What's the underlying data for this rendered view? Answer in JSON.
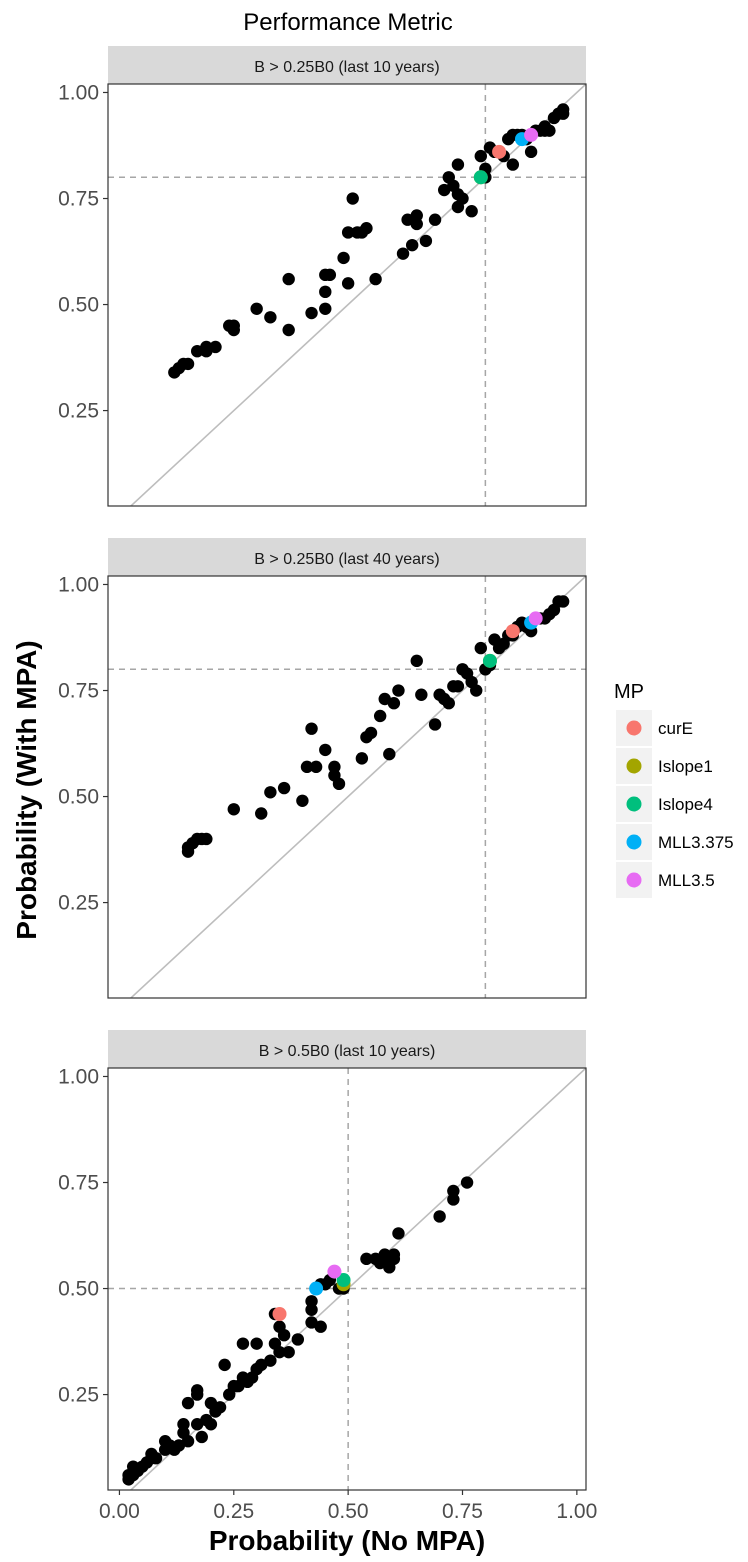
{
  "chart_data": {
    "type": "scatter",
    "title": "Performance Metric",
    "xlabel": "Probability (No MPA)",
    "ylabel": "Probability (With MPA)",
    "xlim": [
      0,
      1
    ],
    "ylim": [
      0,
      1
    ],
    "x_ticks": [
      "0.00",
      "0.25",
      "0.50",
      "0.75",
      "1.00"
    ],
    "y_ticks": [
      "0.25",
      "0.50",
      "0.75",
      "1.00"
    ],
    "grid": false,
    "reference_line": "y = x",
    "legend": {
      "title": "MP",
      "position": "right",
      "entries": [
        {
          "label": "curE",
          "color": "#F8766D"
        },
        {
          "label": "Islope1",
          "color": "#A3A500"
        },
        {
          "label": "Islope4",
          "color": "#00BF7D"
        },
        {
          "label": "MLL3.375",
          "color": "#00B0F6"
        },
        {
          "label": "MLL3.5",
          "color": "#E76BF3"
        }
      ]
    },
    "panels": [
      {
        "strip_label": "B > 0.25B0 (last 10 years)",
        "vline_x": 0.8,
        "hline_y": 0.8,
        "background_points": [
          [
            0.12,
            0.34
          ],
          [
            0.13,
            0.35
          ],
          [
            0.14,
            0.36
          ],
          [
            0.15,
            0.36
          ],
          [
            0.17,
            0.39
          ],
          [
            0.19,
            0.4
          ],
          [
            0.19,
            0.39
          ],
          [
            0.21,
            0.4
          ],
          [
            0.24,
            0.45
          ],
          [
            0.25,
            0.44
          ],
          [
            0.25,
            0.45
          ],
          [
            0.3,
            0.49
          ],
          [
            0.33,
            0.47
          ],
          [
            0.37,
            0.56
          ],
          [
            0.37,
            0.44
          ],
          [
            0.42,
            0.48
          ],
          [
            0.45,
            0.49
          ],
          [
            0.45,
            0.53
          ],
          [
            0.45,
            0.57
          ],
          [
            0.46,
            0.57
          ],
          [
            0.49,
            0.61
          ],
          [
            0.5,
            0.67
          ],
          [
            0.51,
            0.75
          ],
          [
            0.52,
            0.67
          ],
          [
            0.53,
            0.67
          ],
          [
            0.54,
            0.68
          ],
          [
            0.5,
            0.55
          ],
          [
            0.56,
            0.56
          ],
          [
            0.62,
            0.62
          ],
          [
            0.63,
            0.7
          ],
          [
            0.64,
            0.64
          ],
          [
            0.65,
            0.71
          ],
          [
            0.65,
            0.69
          ],
          [
            0.67,
            0.65
          ],
          [
            0.69,
            0.7
          ],
          [
            0.71,
            0.77
          ],
          [
            0.72,
            0.8
          ],
          [
            0.73,
            0.78
          ],
          [
            0.74,
            0.73
          ],
          [
            0.74,
            0.76
          ],
          [
            0.74,
            0.83
          ],
          [
            0.75,
            0.75
          ],
          [
            0.77,
            0.72
          ],
          [
            0.79,
            0.85
          ],
          [
            0.8,
            0.8
          ],
          [
            0.8,
            0.82
          ],
          [
            0.81,
            0.87
          ],
          [
            0.82,
            0.86
          ],
          [
            0.83,
            0.86
          ],
          [
            0.84,
            0.85
          ],
          [
            0.85,
            0.89
          ],
          [
            0.86,
            0.9
          ],
          [
            0.86,
            0.83
          ],
          [
            0.87,
            0.9
          ],
          [
            0.88,
            0.9
          ],
          [
            0.89,
            0.89
          ],
          [
            0.9,
            0.86
          ],
          [
            0.91,
            0.91
          ],
          [
            0.92,
            0.91
          ],
          [
            0.93,
            0.91
          ],
          [
            0.94,
            0.91
          ],
          [
            0.93,
            0.92
          ],
          [
            0.95,
            0.94
          ],
          [
            0.96,
            0.95
          ],
          [
            0.97,
            0.96
          ],
          [
            0.97,
            0.95
          ]
        ],
        "mp_points": [
          {
            "mp": "curE",
            "x": 0.83,
            "y": 0.86
          },
          {
            "mp": "Islope1",
            "x": 0.79,
            "y": 0.8
          },
          {
            "mp": "Islope4",
            "x": 0.79,
            "y": 0.8
          },
          {
            "mp": "MLL3.375",
            "x": 0.88,
            "y": 0.89
          },
          {
            "mp": "MLL3.5",
            "x": 0.9,
            "y": 0.9
          }
        ]
      },
      {
        "strip_label": "B > 0.25B0 (last 40 years)",
        "vline_x": 0.8,
        "hline_y": 0.8,
        "background_points": [
          [
            0.15,
            0.37
          ],
          [
            0.15,
            0.38
          ],
          [
            0.16,
            0.39
          ],
          [
            0.17,
            0.4
          ],
          [
            0.18,
            0.4
          ],
          [
            0.19,
            0.4
          ],
          [
            0.25,
            0.47
          ],
          [
            0.31,
            0.46
          ],
          [
            0.33,
            0.51
          ],
          [
            0.36,
            0.52
          ],
          [
            0.4,
            0.49
          ],
          [
            0.41,
            0.57
          ],
          [
            0.42,
            0.66
          ],
          [
            0.43,
            0.57
          ],
          [
            0.45,
            0.61
          ],
          [
            0.47,
            0.57
          ],
          [
            0.47,
            0.55
          ],
          [
            0.48,
            0.53
          ],
          [
            0.53,
            0.59
          ],
          [
            0.54,
            0.64
          ],
          [
            0.55,
            0.65
          ],
          [
            0.57,
            0.69
          ],
          [
            0.58,
            0.73
          ],
          [
            0.59,
            0.6
          ],
          [
            0.6,
            0.72
          ],
          [
            0.61,
            0.75
          ],
          [
            0.65,
            0.82
          ],
          [
            0.66,
            0.74
          ],
          [
            0.69,
            0.67
          ],
          [
            0.7,
            0.74
          ],
          [
            0.71,
            0.73
          ],
          [
            0.72,
            0.72
          ],
          [
            0.73,
            0.76
          ],
          [
            0.74,
            0.76
          ],
          [
            0.75,
            0.8
          ],
          [
            0.76,
            0.79
          ],
          [
            0.77,
            0.77
          ],
          [
            0.78,
            0.75
          ],
          [
            0.79,
            0.85
          ],
          [
            0.8,
            0.8
          ],
          [
            0.81,
            0.81
          ],
          [
            0.82,
            0.87
          ],
          [
            0.83,
            0.85
          ],
          [
            0.84,
            0.86
          ],
          [
            0.85,
            0.88
          ],
          [
            0.86,
            0.88
          ],
          [
            0.87,
            0.9
          ],
          [
            0.88,
            0.91
          ],
          [
            0.89,
            0.9
          ],
          [
            0.9,
            0.91
          ],
          [
            0.9,
            0.89
          ],
          [
            0.92,
            0.92
          ],
          [
            0.93,
            0.92
          ],
          [
            0.94,
            0.93
          ],
          [
            0.95,
            0.94
          ],
          [
            0.96,
            0.96
          ],
          [
            0.97,
            0.96
          ]
        ],
        "mp_points": [
          {
            "mp": "curE",
            "x": 0.86,
            "y": 0.89
          },
          {
            "mp": "Islope1",
            "x": 0.81,
            "y": 0.82
          },
          {
            "mp": "Islope4",
            "x": 0.81,
            "y": 0.82
          },
          {
            "mp": "MLL3.375",
            "x": 0.9,
            "y": 0.91
          },
          {
            "mp": "MLL3.5",
            "x": 0.91,
            "y": 0.92
          }
        ]
      },
      {
        "strip_label": "B > 0.5B0 (last 10 years)",
        "vline_x": 0.5,
        "hline_y": 0.5,
        "background_points": [
          [
            0.02,
            0.05
          ],
          [
            0.02,
            0.06
          ],
          [
            0.03,
            0.06
          ],
          [
            0.03,
            0.08
          ],
          [
            0.04,
            0.07
          ],
          [
            0.05,
            0.08
          ],
          [
            0.06,
            0.09
          ],
          [
            0.07,
            0.1
          ],
          [
            0.07,
            0.11
          ],
          [
            0.08,
            0.1
          ],
          [
            0.1,
            0.12
          ],
          [
            0.1,
            0.14
          ],
          [
            0.11,
            0.13
          ],
          [
            0.12,
            0.12
          ],
          [
            0.13,
            0.13
          ],
          [
            0.14,
            0.16
          ],
          [
            0.14,
            0.18
          ],
          [
            0.15,
            0.14
          ],
          [
            0.15,
            0.23
          ],
          [
            0.17,
            0.25
          ],
          [
            0.17,
            0.18
          ],
          [
            0.17,
            0.26
          ],
          [
            0.18,
            0.15
          ],
          [
            0.19,
            0.19
          ],
          [
            0.2,
            0.18
          ],
          [
            0.2,
            0.23
          ],
          [
            0.21,
            0.21
          ],
          [
            0.22,
            0.22
          ],
          [
            0.23,
            0.32
          ],
          [
            0.24,
            0.25
          ],
          [
            0.25,
            0.27
          ],
          [
            0.26,
            0.27
          ],
          [
            0.27,
            0.29
          ],
          [
            0.27,
            0.37
          ],
          [
            0.28,
            0.28
          ],
          [
            0.29,
            0.29
          ],
          [
            0.3,
            0.31
          ],
          [
            0.3,
            0.37
          ],
          [
            0.31,
            0.32
          ],
          [
            0.33,
            0.33
          ],
          [
            0.34,
            0.37
          ],
          [
            0.34,
            0.44
          ],
          [
            0.35,
            0.35
          ],
          [
            0.35,
            0.41
          ],
          [
            0.36,
            0.39
          ],
          [
            0.37,
            0.35
          ],
          [
            0.39,
            0.38
          ],
          [
            0.42,
            0.42
          ],
          [
            0.42,
            0.45
          ],
          [
            0.42,
            0.47
          ],
          [
            0.44,
            0.41
          ],
          [
            0.44,
            0.51
          ],
          [
            0.45,
            0.51
          ],
          [
            0.46,
            0.52
          ],
          [
            0.48,
            0.5
          ],
          [
            0.49,
            0.5
          ],
          [
            0.54,
            0.57
          ],
          [
            0.56,
            0.57
          ],
          [
            0.57,
            0.56
          ],
          [
            0.58,
            0.58
          ],
          [
            0.59,
            0.55
          ],
          [
            0.59,
            0.57
          ],
          [
            0.6,
            0.57
          ],
          [
            0.6,
            0.58
          ],
          [
            0.61,
            0.63
          ],
          [
            0.7,
            0.67
          ],
          [
            0.73,
            0.71
          ],
          [
            0.73,
            0.73
          ],
          [
            0.76,
            0.75
          ]
        ],
        "mp_points": [
          {
            "mp": "curE",
            "x": 0.35,
            "y": 0.44
          },
          {
            "mp": "Islope1",
            "x": 0.49,
            "y": 0.51
          },
          {
            "mp": "Islope4",
            "x": 0.49,
            "y": 0.52
          },
          {
            "mp": "MLL3.375",
            "x": 0.43,
            "y": 0.5
          },
          {
            "mp": "MLL3.5",
            "x": 0.47,
            "y": 0.54
          }
        ]
      }
    ]
  }
}
